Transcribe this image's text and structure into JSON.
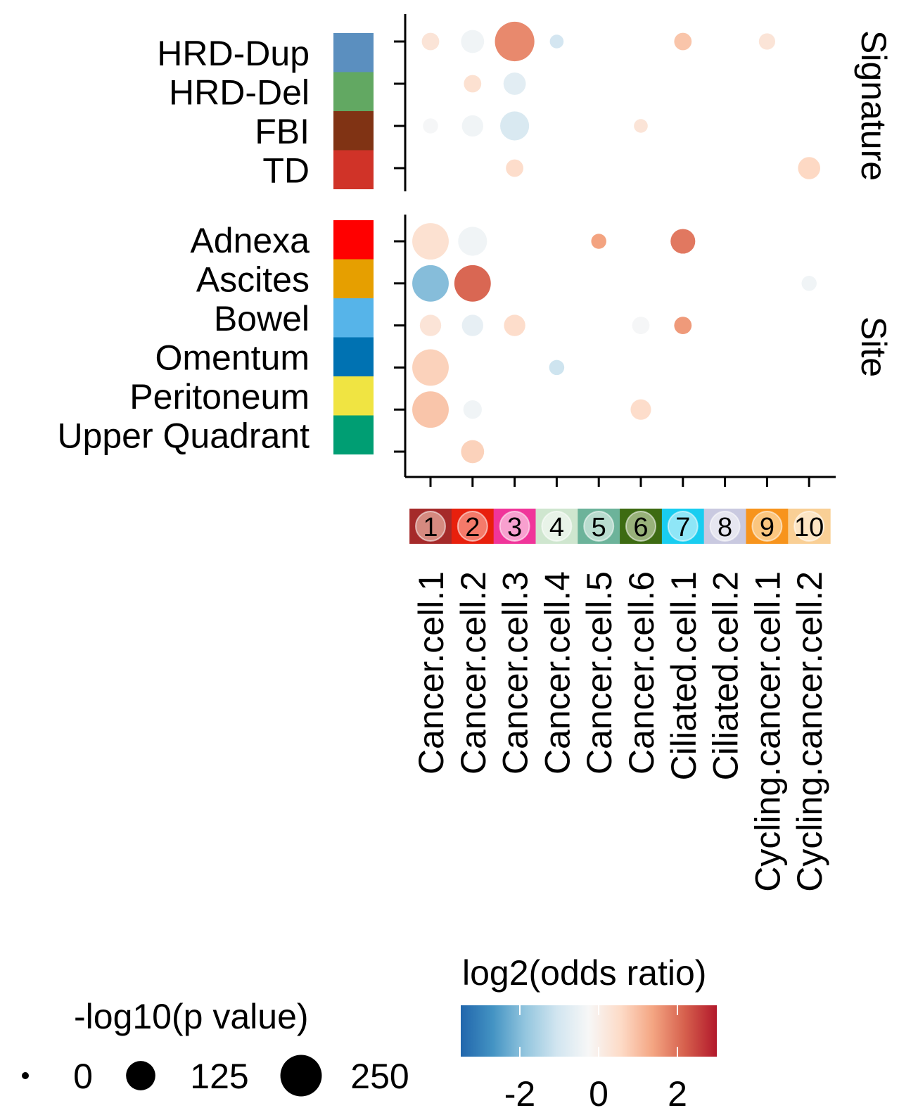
{
  "chart_data": {
    "type": "scatter",
    "subtype": "dot-plot",
    "x_categories": [
      "Cancer.cell.1",
      "Cancer.cell.2",
      "Cancer.cell.3",
      "Cancer.cell.4",
      "Cancer.cell.5",
      "Cancer.cell.6",
      "Ciliated.cell.1",
      "Ciliated.cell.2",
      "Cycling.cancer.cell.1",
      "Cycling.cancer.cell.2"
    ],
    "cluster_badges": [
      {
        "label": "1",
        "color": "#a52a2a",
        "dot": "#d58a80"
      },
      {
        "label": "2",
        "color": "#e8200d",
        "dot": "#f47a6a"
      },
      {
        "label": "3",
        "color": "#f0359a",
        "dot": "#f8a0cf"
      },
      {
        "label": "4",
        "color": "#cfe6cf",
        "dot": "#e8f3e8"
      },
      {
        "label": "5",
        "color": "#6cb39a",
        "dot": "#b9dccf"
      },
      {
        "label": "6",
        "color": "#3d6b12",
        "dot": "#98b17a"
      },
      {
        "label": "7",
        "color": "#19cdf0",
        "dot": "#8fe6f7"
      },
      {
        "label": "8",
        "color": "#c9c9e0",
        "dot": "#e6e6f0"
      },
      {
        "label": "9",
        "color": "#f7941d",
        "dot": "#fbc67f"
      },
      {
        "label": "10",
        "color": "#f9cf95",
        "dot": "#fde5c4"
      }
    ],
    "facets": [
      {
        "name": "Signature",
        "rows": [
          {
            "label": "HRD-Dup",
            "color": "#5b8fbf"
          },
          {
            "label": "HRD-Del",
            "color": "#62a862"
          },
          {
            "label": "FBI",
            "color": "#803314"
          },
          {
            "label": "TD",
            "color": "#d03328"
          }
        ],
        "points": [
          {
            "row": "HRD-Dup",
            "x": "Cancer.cell.1",
            "log2_or": 0.3,
            "neglog10_p": 40
          },
          {
            "row": "HRD-Dup",
            "x": "Cancer.cell.2",
            "log2_or": -0.4,
            "neglog10_p": 70
          },
          {
            "row": "HRD-Dup",
            "x": "Cancer.cell.3",
            "log2_or": 1.7,
            "neglog10_p": 205
          },
          {
            "row": "HRD-Dup",
            "x": "Cancer.cell.4",
            "log2_or": -1.0,
            "neglog10_p": 25
          },
          {
            "row": "HRD-Dup",
            "x": "Ciliated.cell.1",
            "log2_or": 0.9,
            "neglog10_p": 40
          },
          {
            "row": "HRD-Dup",
            "x": "Cycling.cancer.cell.1",
            "log2_or": 0.3,
            "neglog10_p": 35
          },
          {
            "row": "HRD-Del",
            "x": "Cancer.cell.2",
            "log2_or": 0.4,
            "neglog10_p": 40
          },
          {
            "row": "HRD-Del",
            "x": "Cancer.cell.3",
            "log2_or": -0.7,
            "neglog10_p": 65
          },
          {
            "row": "HRD-Del",
            "x": "Cancer.cell.3",
            "log2_or": -0.7,
            "neglog10_p": 65
          },
          {
            "row": "FBI",
            "x": "Cancer.cell.1",
            "log2_or": -0.3,
            "neglog10_p": 30
          },
          {
            "row": "FBI",
            "x": "Cancer.cell.2",
            "log2_or": -0.4,
            "neglog10_p": 60
          },
          {
            "row": "FBI",
            "x": "Cancer.cell.3",
            "log2_or": -0.9,
            "neglog10_p": 110
          },
          {
            "row": "FBI",
            "x": "Cancer.cell.6",
            "log2_or": 0.3,
            "neglog10_p": 25
          },
          {
            "row": "TD",
            "x": "Cancer.cell.3",
            "log2_or": 0.5,
            "neglog10_p": 40
          },
          {
            "row": "TD",
            "x": "Cycling.cancer.cell.2",
            "log2_or": 0.6,
            "neglog10_p": 65
          }
        ]
      },
      {
        "name": "Site",
        "rows": [
          {
            "label": "Adnexa",
            "color": "#ff0000"
          },
          {
            "label": "Ascites",
            "color": "#e69f00"
          },
          {
            "label": "Bowel",
            "color": "#56b4e9"
          },
          {
            "label": "Omentum",
            "color": "#0072b2"
          },
          {
            "label": "Peritoneum",
            "color": "#f0e442"
          },
          {
            "label": "Upper Quadrant",
            "color": "#009e73"
          }
        ],
        "points": [
          {
            "row": "Adnexa",
            "x": "Cancer.cell.1",
            "log2_or": 0.4,
            "neglog10_p": 175
          },
          {
            "row": "Adnexa",
            "x": "Cancer.cell.2",
            "log2_or": -0.4,
            "neglog10_p": 110
          },
          {
            "row": "Adnexa",
            "x": "Cancer.cell.5",
            "log2_or": 1.4,
            "neglog10_p": 30
          },
          {
            "row": "Adnexa",
            "x": "Ciliated.cell.1",
            "log2_or": 1.9,
            "neglog10_p": 80
          },
          {
            "row": "Ascites",
            "x": "Cancer.cell.1",
            "log2_or": -2.0,
            "neglog10_p": 175
          },
          {
            "row": "Ascites",
            "x": "Cancer.cell.2",
            "log2_or": 2.1,
            "neglog10_p": 175
          },
          {
            "row": "Ascites",
            "x": "Cycling.cancer.cell.2",
            "log2_or": -0.4,
            "neglog10_p": 30
          },
          {
            "row": "Bowel",
            "x": "Cancer.cell.1",
            "log2_or": 0.3,
            "neglog10_p": 60
          },
          {
            "row": "Bowel",
            "x": "Cancer.cell.2",
            "log2_or": -0.6,
            "neglog10_p": 60
          },
          {
            "row": "Bowel",
            "x": "Cancer.cell.3",
            "log2_or": 0.5,
            "neglog10_p": 60
          },
          {
            "row": "Bowel",
            "x": "Cancer.cell.6",
            "log2_or": -0.3,
            "neglog10_p": 40
          },
          {
            "row": "Bowel",
            "x": "Ciliated.cell.1",
            "log2_or": 1.5,
            "neglog10_p": 40
          },
          {
            "row": "Omentum",
            "x": "Cancer.cell.1",
            "log2_or": 0.7,
            "neglog10_p": 175
          },
          {
            "row": "Omentum",
            "x": "Cancer.cell.4",
            "log2_or": -1.1,
            "neglog10_p": 30
          },
          {
            "row": "Peritoneum",
            "x": "Cancer.cell.1",
            "log2_or": 0.9,
            "neglog10_p": 175
          },
          {
            "row": "Peritoneum",
            "x": "Cancer.cell.2",
            "log2_or": -0.4,
            "neglog10_p": 45
          },
          {
            "row": "Peritoneum",
            "x": "Cancer.cell.6",
            "log2_or": 0.5,
            "neglog10_p": 55
          },
          {
            "row": "Upper Quadrant",
            "x": "Cancer.cell.2",
            "log2_or": 0.7,
            "neglog10_p": 70
          }
        ]
      }
    ],
    "color_legend": {
      "title": "log2(odds ratio)",
      "ticks": [
        -2,
        0,
        2
      ],
      "range": [
        -3.5,
        3
      ],
      "colors": [
        "#2166ac",
        "#4393c3",
        "#92c5de",
        "#d1e5f0",
        "#f7f7f7",
        "#fddbc7",
        "#f4a582",
        "#d6604d",
        "#b2182b"
      ]
    },
    "size_legend": {
      "title": "-log10(p value)",
      "breaks": [
        0,
        125,
        250
      ]
    }
  }
}
